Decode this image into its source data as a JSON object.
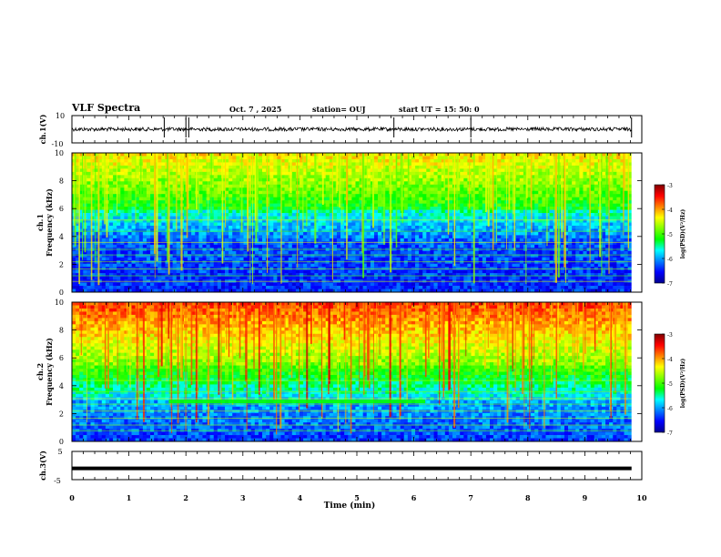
{
  "header": {
    "title": "VLF Spectra",
    "date": "Oct. 7 , 2025",
    "station": "station= OUJ",
    "start": "start UT = 15: 50: 0"
  },
  "colors": {
    "colormap": [
      "#00008f",
      "#0000ff",
      "#0080ff",
      "#00ffff",
      "#00ff00",
      "#80ff00",
      "#ffff00",
      "#ff8000",
      "#ff0000",
      "#800000"
    ]
  },
  "chart_data": [
    {
      "type": "line",
      "ylabel": "ch.1(V)",
      "ylim": [
        -10,
        10
      ],
      "y_tick_labels": [
        "10",
        "-10"
      ],
      "xlim": [
        0,
        10
      ],
      "baseline": 0,
      "note_series": "noisy waveform around 0 V with sparse spikes near 1.6, 2.0 and 9.8 min"
    },
    {
      "type": "heatmap",
      "ylabel": "ch.1\nFrequency (kHz)",
      "ylim": [
        0,
        10
      ],
      "y_ticks": [
        "0",
        "2",
        "4",
        "6",
        "8",
        "10"
      ],
      "xlim": [
        0,
        10
      ],
      "data_end_min": 9.82,
      "colorbar": {
        "label": "log(PSD)(V²/Hz)",
        "range": [
          -7,
          -3
        ],
        "ticks": [
          "-3",
          "-4",
          "-5",
          "-6",
          "-7"
        ]
      }
    },
    {
      "type": "heatmap",
      "ylabel": "ch.2\nFrequency (kHz)",
      "ylim": [
        0,
        10
      ],
      "y_ticks": [
        "0",
        "2",
        "4",
        "6",
        "8",
        "10"
      ],
      "xlim": [
        0,
        10
      ],
      "data_end_min": 9.82,
      "colorbar": {
        "label": "log(PSD)(V²/Hz)",
        "range": [
          -7,
          -3
        ],
        "ticks": [
          "-3",
          "-4",
          "-5",
          "-6",
          "-7"
        ]
      }
    },
    {
      "type": "line",
      "ylabel": "ch.3(V)",
      "ylim": [
        -5,
        5
      ],
      "y_tick_labels": [
        "5",
        "-5"
      ],
      "xlim": [
        0,
        10
      ],
      "constant_value": -1
    }
  ],
  "x_axis": {
    "label": "Time (min)",
    "ticks": [
      "0",
      "1",
      "2",
      "3",
      "4",
      "5",
      "6",
      "7",
      "8",
      "9",
      "10"
    ]
  }
}
